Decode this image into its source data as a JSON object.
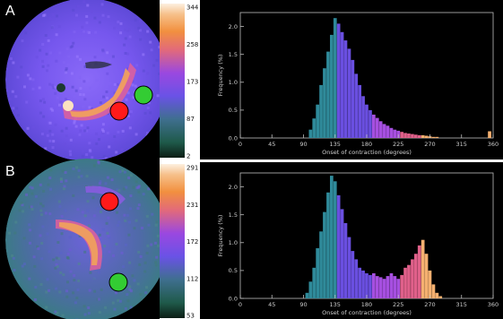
{
  "colors": {
    "background": "#000000",
    "polar_base": "#7a5cf0",
    "hot": "#f2a35a",
    "marker_red": "#ff1a1a",
    "marker_green": "#33cc33",
    "histogram_cool": "#6a4fe0",
    "histogram_hot": "#f5a060"
  },
  "chart_data": [
    {
      "id": "A",
      "type": "polar_map",
      "panel_label": "A",
      "colorbar": {
        "ticks": [
          "344",
          "258",
          "173",
          "87",
          "2"
        ],
        "min": 2,
        "max": 344
      },
      "markers": [
        {
          "name": "red",
          "color": "#ff1a1a"
        },
        {
          "name": "green",
          "color": "#33cc33"
        }
      ]
    },
    {
      "id": "A-hist",
      "type": "bar",
      "xlabel": "Onset of contraction (degrees)",
      "ylabel": "Frequency (%)",
      "xlim": [
        0,
        360
      ],
      "ylim": [
        0,
        2.25
      ],
      "xticks": [
        "0",
        "45",
        "90",
        "135",
        "180",
        "225",
        "270",
        "315",
        "360"
      ],
      "yticks": [
        "0.0",
        "0.5",
        "1.0",
        "1.5",
        "2.0"
      ],
      "grid": false,
      "series": [
        {
          "x": [
            100,
            105,
            110,
            115,
            120,
            125,
            130,
            135,
            140,
            145,
            150,
            155,
            160,
            165,
            170,
            175,
            180,
            185,
            190,
            195,
            200,
            205,
            210,
            215,
            220,
            225,
            230,
            235,
            240,
            245,
            250,
            255,
            260,
            265,
            270,
            275,
            280,
            355
          ],
          "values": [
            0.15,
            0.35,
            0.6,
            0.95,
            1.25,
            1.55,
            1.85,
            2.15,
            2.05,
            1.9,
            1.75,
            1.6,
            1.4,
            1.15,
            0.95,
            0.75,
            0.6,
            0.5,
            0.42,
            0.36,
            0.3,
            0.25,
            0.22,
            0.18,
            0.15,
            0.13,
            0.11,
            0.09,
            0.08,
            0.07,
            0.06,
            0.05,
            0.05,
            0.04,
            0.03,
            0.02,
            0.02,
            0.12
          ]
        }
      ]
    },
    {
      "id": "B",
      "type": "polar_map",
      "panel_label": "B",
      "colorbar": {
        "ticks": [
          "291",
          "231",
          "172",
          "112",
          "53"
        ],
        "min": 53,
        "max": 291
      },
      "markers": [
        {
          "name": "red",
          "color": "#ff1a1a"
        },
        {
          "name": "green",
          "color": "#33cc33"
        }
      ]
    },
    {
      "id": "B-hist",
      "type": "bar",
      "xlabel": "Onset of contraction (degrees)",
      "ylabel": "Frequency (%)",
      "xlim": [
        0,
        360
      ],
      "ylim": [
        0,
        2.25
      ],
      "xticks": [
        "0",
        "45",
        "90",
        "135",
        "180",
        "225",
        "270",
        "315",
        "360"
      ],
      "yticks": [
        "0.0",
        "0.5",
        "1.0",
        "1.5",
        "2.0"
      ],
      "grid": false,
      "series": [
        {
          "x": [
            95,
            100,
            105,
            110,
            115,
            120,
            125,
            130,
            135,
            140,
            145,
            150,
            155,
            160,
            165,
            170,
            175,
            180,
            185,
            190,
            195,
            200,
            205,
            210,
            215,
            220,
            225,
            230,
            235,
            240,
            245,
            250,
            255,
            260,
            265,
            270,
            275,
            280,
            285
          ],
          "values": [
            0.1,
            0.3,
            0.55,
            0.9,
            1.2,
            1.55,
            1.9,
            2.2,
            2.1,
            1.85,
            1.6,
            1.35,
            1.1,
            0.85,
            0.7,
            0.55,
            0.5,
            0.45,
            0.42,
            0.45,
            0.4,
            0.38,
            0.35,
            0.4,
            0.45,
            0.4,
            0.35,
            0.42,
            0.55,
            0.6,
            0.7,
            0.8,
            0.95,
            1.05,
            0.8,
            0.5,
            0.25,
            0.1,
            0.04
          ]
        }
      ]
    }
  ]
}
